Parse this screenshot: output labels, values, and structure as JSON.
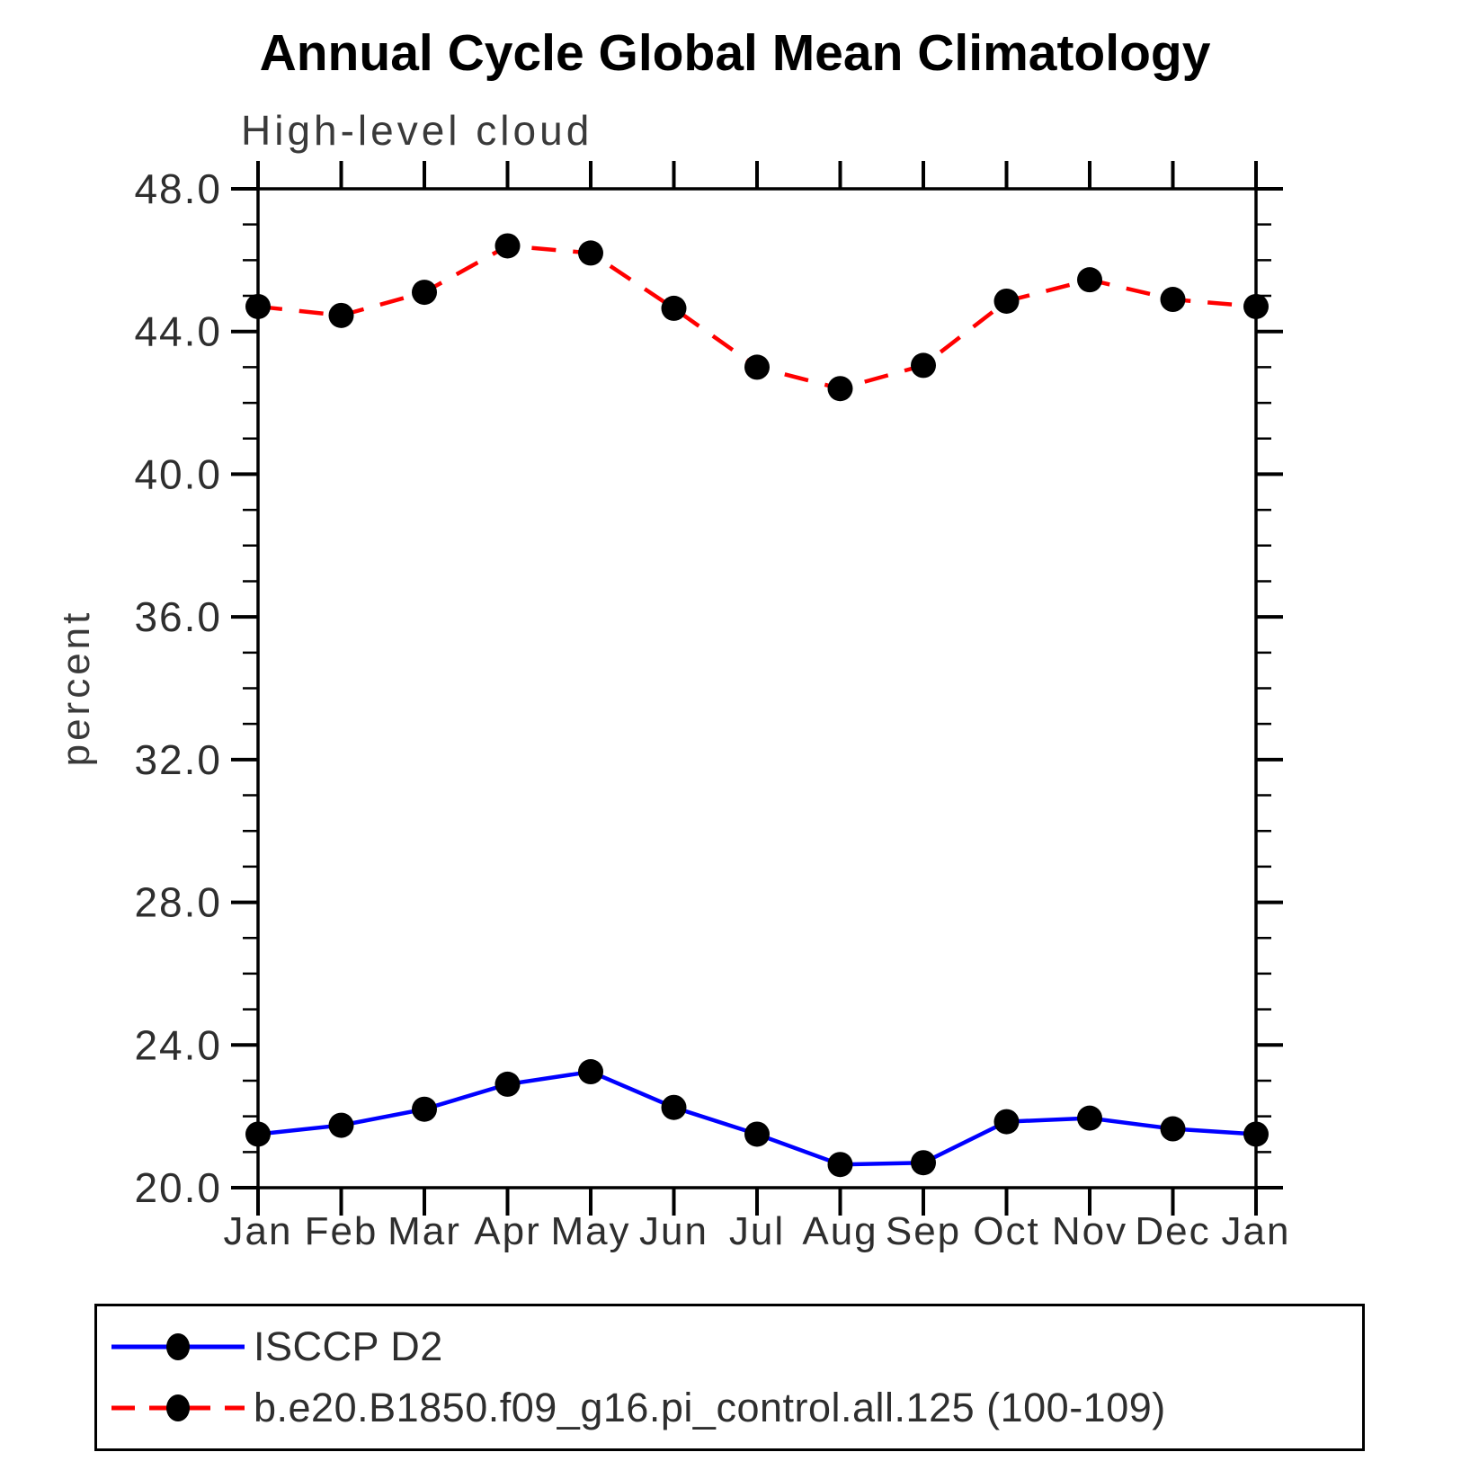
{
  "title": "Annual Cycle Global Mean Climatology",
  "subtitle": "High-level cloud",
  "chart_data": {
    "type": "line",
    "x": [
      "Jan",
      "Feb",
      "Mar",
      "Apr",
      "May",
      "Jun",
      "Jul",
      "Aug",
      "Sep",
      "Oct",
      "Nov",
      "Dec",
      "Jan"
    ],
    "xlabel": "",
    "ylabel": "percent",
    "ylim": [
      20.0,
      48.0
    ],
    "ytick_step": 4.0,
    "yminor_step": 1.0,
    "ytick_labels": [
      "20.0",
      "24.0",
      "28.0",
      "32.0",
      "36.0",
      "40.0",
      "44.0",
      "48.0"
    ],
    "grid": false,
    "legend_position": "bottom-left-box",
    "series": [
      {
        "name": "ISCCP D2",
        "line_style": "solid",
        "color": "#0000ff",
        "marker": "filled-circle",
        "marker_color": "#000000",
        "values": [
          21.5,
          21.75,
          22.2,
          22.9,
          23.25,
          22.25,
          21.5,
          20.65,
          20.7,
          21.85,
          21.95,
          21.65,
          21.5
        ]
      },
      {
        "name": "b.e20.B1850.f09_g16.pi_control.all.125 (100-109)",
        "line_style": "dashed",
        "color": "#ff0000",
        "marker": "filled-circle",
        "marker_color": "#000000",
        "values": [
          44.7,
          44.45,
          45.1,
          46.4,
          46.2,
          44.65,
          43.0,
          42.4,
          43.05,
          44.85,
          45.45,
          44.9,
          44.7
        ]
      }
    ]
  },
  "colors": {
    "axis": "#000000",
    "text": "#2e2e2e",
    "background": "#ffffff"
  }
}
